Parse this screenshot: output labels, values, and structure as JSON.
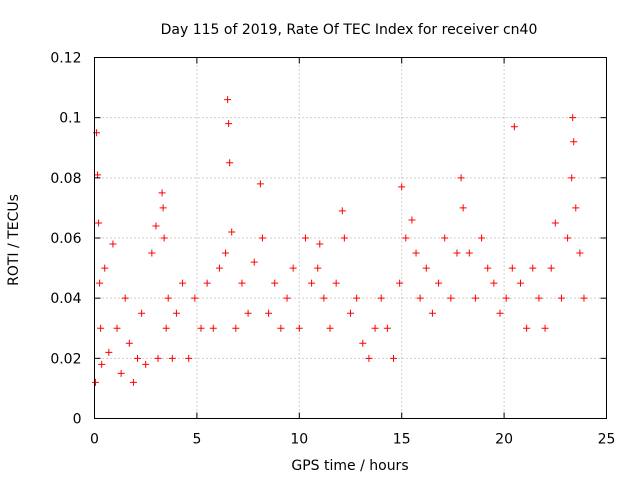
{
  "chart_data": {
    "type": "scatter",
    "title": "Day 115 of 2019, Rate Of TEC Index for receiver cn40",
    "xlabel": "GPS time / hours",
    "ylabel": "ROTI / TECUs",
    "xlim": [
      0,
      25
    ],
    "ylim": [
      0,
      0.12
    ],
    "xticks": [
      0,
      5,
      10,
      15,
      20,
      25
    ],
    "xtick_labels": [
      "0",
      "5",
      "10",
      "15",
      "20",
      "25"
    ],
    "yticks": [
      0,
      0.02,
      0.04,
      0.06,
      0.08,
      0.1,
      0.12
    ],
    "ytick_labels": [
      "0",
      "0.02",
      "0.04",
      "0.06",
      "0.08",
      "0.1",
      "0.12"
    ],
    "grid": true,
    "marker": "+",
    "color": "#ff0000",
    "series": [
      {
        "name": "ROTI",
        "x": [
          0.05,
          0.1,
          0.15,
          0.2,
          0.25,
          0.3,
          0.35,
          0.5,
          0.7,
          0.9,
          1.1,
          1.3,
          1.5,
          1.7,
          1.9,
          2.1,
          2.3,
          2.5,
          2.8,
          3.0,
          3.1,
          3.3,
          3.35,
          3.4,
          3.5,
          3.6,
          3.8,
          4.0,
          4.3,
          4.6,
          4.9,
          5.2,
          5.5,
          5.8,
          6.1,
          6.4,
          6.5,
          6.55,
          6.6,
          6.7,
          6.9,
          7.2,
          7.5,
          7.8,
          8.1,
          8.2,
          8.5,
          8.8,
          9.1,
          9.4,
          9.7,
          10.0,
          10.3,
          10.6,
          10.9,
          11.0,
          11.2,
          11.5,
          11.8,
          12.1,
          12.2,
          12.5,
          12.8,
          13.1,
          13.4,
          13.7,
          14.0,
          14.3,
          14.6,
          14.9,
          15.0,
          15.2,
          15.5,
          15.7,
          15.9,
          16.2,
          16.5,
          16.8,
          17.1,
          17.4,
          17.7,
          17.9,
          18.0,
          18.3,
          18.6,
          18.9,
          19.2,
          19.5,
          19.8,
          20.1,
          20.4,
          20.5,
          20.8,
          21.1,
          21.4,
          21.7,
          22.0,
          22.3,
          22.5,
          22.8,
          23.1,
          23.3,
          23.35,
          23.4,
          23.5,
          23.7,
          23.9
        ],
        "y": [
          0.012,
          0.095,
          0.081,
          0.065,
          0.045,
          0.03,
          0.018,
          0.05,
          0.022,
          0.058,
          0.03,
          0.015,
          0.04,
          0.025,
          0.012,
          0.02,
          0.035,
          0.018,
          0.055,
          0.064,
          0.02,
          0.075,
          0.07,
          0.06,
          0.03,
          0.04,
          0.02,
          0.035,
          0.045,
          0.02,
          0.04,
          0.03,
          0.045,
          0.03,
          0.05,
          0.055,
          0.106,
          0.098,
          0.085,
          0.062,
          0.03,
          0.045,
          0.035,
          0.052,
          0.078,
          0.06,
          0.035,
          0.045,
          0.03,
          0.04,
          0.05,
          0.03,
          0.06,
          0.045,
          0.05,
          0.058,
          0.04,
          0.03,
          0.045,
          0.069,
          0.06,
          0.035,
          0.04,
          0.025,
          0.02,
          0.03,
          0.04,
          0.03,
          0.02,
          0.045,
          0.077,
          0.06,
          0.066,
          0.055,
          0.04,
          0.05,
          0.035,
          0.045,
          0.06,
          0.04,
          0.055,
          0.08,
          0.07,
          0.055,
          0.04,
          0.06,
          0.05,
          0.045,
          0.035,
          0.04,
          0.05,
          0.097,
          0.045,
          0.03,
          0.05,
          0.04,
          0.03,
          0.05,
          0.065,
          0.04,
          0.06,
          0.08,
          0.1,
          0.092,
          0.07,
          0.055,
          0.04
        ]
      }
    ]
  }
}
